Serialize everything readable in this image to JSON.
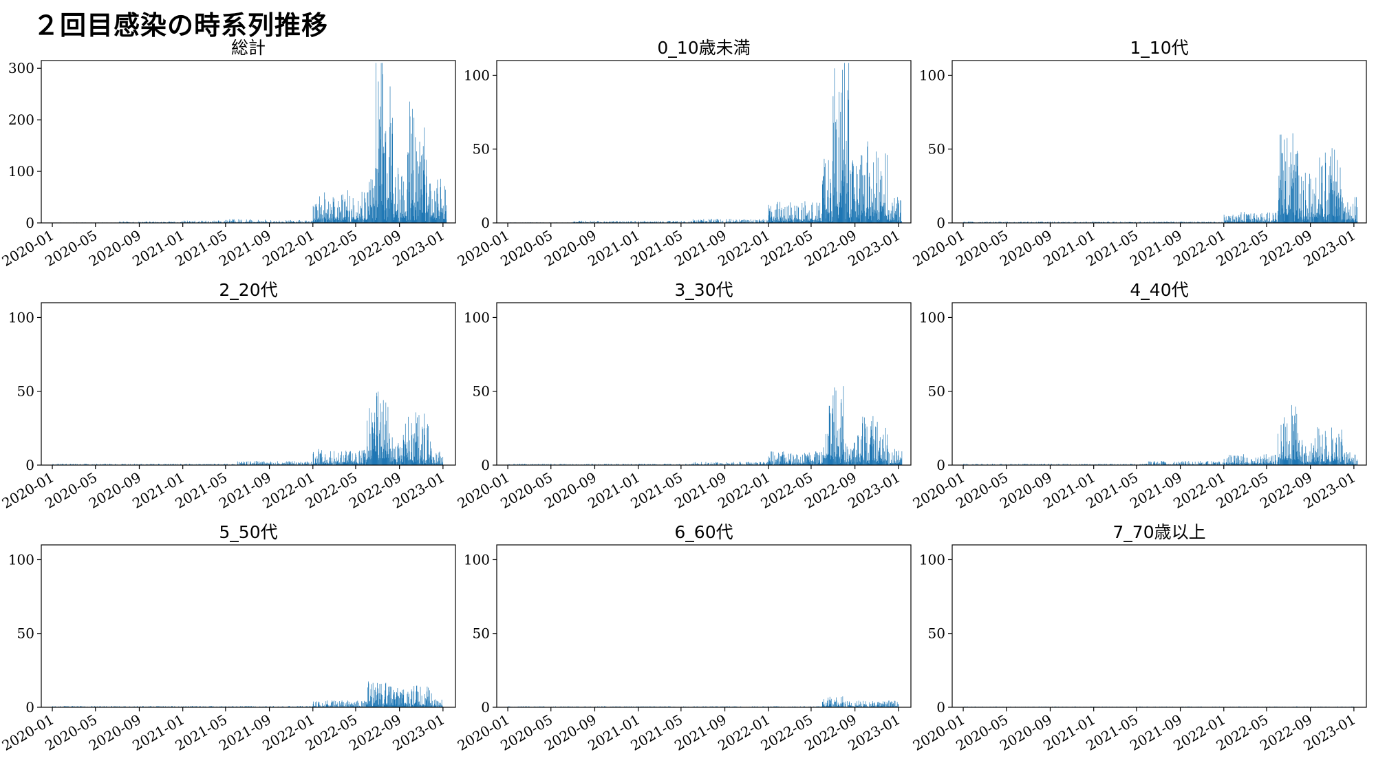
{
  "figure": {
    "title": "２回目感染の時系列推移"
  },
  "colors": {
    "bar": "#1f77b4",
    "axis": "#000000"
  },
  "chart_data": [
    {
      "type": "bar",
      "title": "総計",
      "ylim": [
        0,
        315
      ],
      "yticks": [
        0,
        100,
        200,
        300
      ],
      "xticks": [
        "2020-01",
        "2020-05",
        "2020-09",
        "2021-01",
        "2021-05",
        "2021-09",
        "2022-01",
        "2022-05",
        "2022-09",
        "2023-01"
      ],
      "x_range": [
        "2019-12-01",
        "2023-02-05"
      ],
      "series": [
        {
          "values_by_period": [
            {
              "from": "2020-01-01",
              "to": "2020-06-30",
              "level": 0.5
            },
            {
              "from": "2020-07-01",
              "to": "2020-12-31",
              "level": 1.5
            },
            {
              "from": "2021-01-01",
              "to": "2021-04-30",
              "level": 2.5
            },
            {
              "from": "2021-05-01",
              "to": "2021-08-31",
              "level": 4
            },
            {
              "from": "2021-09-01",
              "to": "2021-12-31",
              "level": 3
            },
            {
              "from": "2022-01-01",
              "to": "2022-01-10",
              "level": 20
            },
            {
              "from": "2022-01-11",
              "to": "2022-06-05",
              "level": 35
            },
            {
              "from": "2022-06-06",
              "to": "2022-06-25",
              "level": 60
            },
            {
              "from": "2022-06-26",
              "to": "2022-07-20",
              "level": 230
            },
            {
              "from": "2022-07-21",
              "to": "2022-08-15",
              "level": 150
            },
            {
              "from": "2022-08-16",
              "to": "2022-09-20",
              "level": 60
            },
            {
              "from": "2022-09-21",
              "to": "2022-11-20",
              "level": 130
            },
            {
              "from": "2022-11-21",
              "to": "2023-01-10",
              "level": 50
            }
          ]
        }
      ]
    },
    {
      "type": "bar",
      "title": "0_10歳未満",
      "ylim": [
        0,
        110
      ],
      "yticks": [
        0,
        50,
        100
      ],
      "xticks": [
        "2020-01",
        "2020-05",
        "2020-09",
        "2021-01",
        "2021-05",
        "2021-09",
        "2022-01",
        "2022-05",
        "2022-09",
        "2023-01"
      ],
      "x_range": [
        "2019-12-01",
        "2023-02-05"
      ],
      "series": [
        {
          "values_by_period": [
            {
              "from": "2020-01-01",
              "to": "2020-06-30",
              "level": 0.2
            },
            {
              "from": "2020-07-01",
              "to": "2021-05-31",
              "level": 0.8
            },
            {
              "from": "2021-06-01",
              "to": "2021-12-31",
              "level": 1.5
            },
            {
              "from": "2022-01-01",
              "to": "2022-05-31",
              "level": 8
            },
            {
              "from": "2022-06-01",
              "to": "2022-06-30",
              "level": 25
            },
            {
              "from": "2022-07-01",
              "to": "2022-08-15",
              "level": 70
            },
            {
              "from": "2022-08-16",
              "to": "2022-09-30",
              "level": 25
            },
            {
              "from": "2022-10-01",
              "to": "2022-11-30",
              "level": 30
            },
            {
              "from": "2022-12-01",
              "to": "2023-01-10",
              "level": 10
            }
          ]
        }
      ]
    },
    {
      "type": "bar",
      "title": "1_10代",
      "ylim": [
        0,
        110
      ],
      "yticks": [
        0,
        50,
        100
      ],
      "xticks": [
        "2020-01",
        "2020-05",
        "2020-09",
        "2021-01",
        "2021-05",
        "2021-09",
        "2022-01",
        "2022-05",
        "2022-09",
        "2023-01"
      ],
      "x_range": [
        "2019-12-01",
        "2023-02-05"
      ],
      "series": [
        {
          "values_by_period": [
            {
              "from": "2020-01-01",
              "to": "2021-12-31",
              "level": 0.5
            },
            {
              "from": "2022-01-01",
              "to": "2022-05-31",
              "level": 4
            },
            {
              "from": "2022-06-01",
              "to": "2022-07-31",
              "level": 35
            },
            {
              "from": "2022-08-01",
              "to": "2022-09-15",
              "level": 20
            },
            {
              "from": "2022-09-16",
              "to": "2022-11-30",
              "level": 28
            },
            {
              "from": "2022-12-01",
              "to": "2023-01-10",
              "level": 10
            }
          ]
        }
      ]
    },
    {
      "type": "bar",
      "title": "2_20代",
      "ylim": [
        0,
        110
      ],
      "yticks": [
        0,
        50,
        100
      ],
      "xticks": [
        "2020-01",
        "2020-05",
        "2020-09",
        "2021-01",
        "2021-05",
        "2021-09",
        "2022-01",
        "2022-05",
        "2022-09",
        "2023-01"
      ],
      "x_range": [
        "2019-12-01",
        "2023-02-05"
      ],
      "series": [
        {
          "values_by_period": [
            {
              "from": "2020-01-01",
              "to": "2021-05-31",
              "level": 0.5
            },
            {
              "from": "2021-06-01",
              "to": "2021-12-31",
              "level": 1.5
            },
            {
              "from": "2022-01-01",
              "to": "2022-05-31",
              "level": 6
            },
            {
              "from": "2022-06-01",
              "to": "2022-07-31",
              "level": 30
            },
            {
              "from": "2022-08-01",
              "to": "2022-09-15",
              "level": 12
            },
            {
              "from": "2022-09-16",
              "to": "2022-11-30",
              "level": 20
            },
            {
              "from": "2022-12-01",
              "to": "2022-12-31",
              "level": 5
            }
          ]
        }
      ]
    },
    {
      "type": "bar",
      "title": "3_30代",
      "ylim": [
        0,
        110
      ],
      "yticks": [
        0,
        50,
        100
      ],
      "xticks": [
        "2020-01",
        "2020-05",
        "2020-09",
        "2021-01",
        "2021-05",
        "2021-09",
        "2022-01",
        "2022-05",
        "2022-09",
        "2023-01"
      ],
      "x_range": [
        "2019-12-01",
        "2023-02-05"
      ],
      "series": [
        {
          "values_by_period": [
            {
              "from": "2020-01-01",
              "to": "2021-05-31",
              "level": 0.5
            },
            {
              "from": "2021-06-01",
              "to": "2021-12-31",
              "level": 1.2
            },
            {
              "from": "2022-01-01",
              "to": "2022-05-31",
              "level": 5
            },
            {
              "from": "2022-06-01",
              "to": "2022-07-31",
              "level": 30
            },
            {
              "from": "2022-08-01",
              "to": "2022-09-15",
              "level": 12
            },
            {
              "from": "2022-09-16",
              "to": "2022-11-30",
              "level": 18
            },
            {
              "from": "2022-12-01",
              "to": "2023-01-10",
              "level": 6
            }
          ]
        }
      ]
    },
    {
      "type": "bar",
      "title": "4_40代",
      "ylim": [
        0,
        110
      ],
      "yticks": [
        0,
        50,
        100
      ],
      "xticks": [
        "2020-01",
        "2020-05",
        "2020-09",
        "2021-01",
        "2021-05",
        "2021-09",
        "2022-01",
        "2022-05",
        "2022-09",
        "2023-01"
      ],
      "x_range": [
        "2019-12-01",
        "2023-02-05"
      ],
      "series": [
        {
          "values_by_period": [
            {
              "from": "2020-01-01",
              "to": "2021-05-31",
              "level": 0.5
            },
            {
              "from": "2021-06-01",
              "to": "2021-12-31",
              "level": 1.5
            },
            {
              "from": "2022-01-01",
              "to": "2022-05-31",
              "level": 4
            },
            {
              "from": "2022-06-01",
              "to": "2022-07-31",
              "level": 22
            },
            {
              "from": "2022-08-01",
              "to": "2022-09-15",
              "level": 10
            },
            {
              "from": "2022-09-16",
              "to": "2022-11-30",
              "level": 14
            },
            {
              "from": "2022-12-01",
              "to": "2023-01-10",
              "level": 5
            }
          ]
        }
      ]
    },
    {
      "type": "bar",
      "title": "5_50代",
      "ylim": [
        0,
        110
      ],
      "yticks": [
        0,
        50,
        100
      ],
      "xticks": [
        "2020-01",
        "2020-05",
        "2020-09",
        "2021-01",
        "2021-05",
        "2021-09",
        "2022-01",
        "2022-05",
        "2022-09",
        "2023-01"
      ],
      "x_range": [
        "2019-12-01",
        "2023-02-05"
      ],
      "series": [
        {
          "values_by_period": [
            {
              "from": "2020-01-01",
              "to": "2021-12-31",
              "level": 0.5
            },
            {
              "from": "2022-01-01",
              "to": "2022-05-31",
              "level": 2.5
            },
            {
              "from": "2022-06-01",
              "to": "2022-07-31",
              "level": 10
            },
            {
              "from": "2022-08-01",
              "to": "2022-11-30",
              "level": 8
            },
            {
              "from": "2022-12-01",
              "to": "2022-12-31",
              "level": 3
            }
          ]
        }
      ]
    },
    {
      "type": "bar",
      "title": "6_60代",
      "ylim": [
        0,
        110
      ],
      "yticks": [
        0,
        50,
        100
      ],
      "xticks": [
        "2020-01",
        "2020-05",
        "2020-09",
        "2021-01",
        "2021-05",
        "2021-09",
        "2022-01",
        "2022-05",
        "2022-09",
        "2023-01"
      ],
      "x_range": [
        "2019-12-01",
        "2023-02-05"
      ],
      "series": [
        {
          "values_by_period": [
            {
              "from": "2020-01-01",
              "to": "2022-05-31",
              "level": 0.4
            },
            {
              "from": "2022-06-01",
              "to": "2022-07-31",
              "level": 4
            },
            {
              "from": "2022-08-01",
              "to": "2022-12-31",
              "level": 2.5
            }
          ]
        }
      ]
    },
    {
      "type": "bar",
      "title": "7_70歳以上",
      "ylim": [
        0,
        110
      ],
      "yticks": [
        0,
        50,
        100
      ],
      "xticks": [
        "2020-01",
        "2020-05",
        "2020-09",
        "2021-01",
        "2021-05",
        "2021-09",
        "2022-01",
        "2022-05",
        "2022-09",
        "2023-01"
      ],
      "x_range": [
        "2019-12-01",
        "2023-02-05"
      ],
      "series": [
        {
          "values_by_period": [
            {
              "from": "2020-01-01",
              "to": "2022-12-31",
              "level": 0.3
            }
          ]
        }
      ]
    }
  ]
}
